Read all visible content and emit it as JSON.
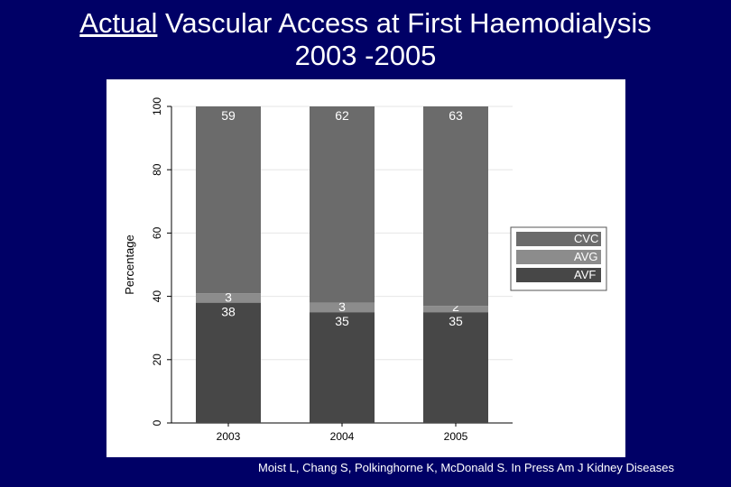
{
  "title": {
    "underlined": "Actual",
    "line1_rest": " Vascular Access at First Haemodialysis",
    "line2": "2003 -2005"
  },
  "citation": "Moist L, Chang S, Polkinghorne K, McDonald S. In Press Am J Kidney Diseases",
  "colors": {
    "background": "#000066",
    "CVC": "#6b6b6b",
    "AVG": "#8c8c8c",
    "AVF": "#474747"
  },
  "chart_data": {
    "type": "bar",
    "stacked": true,
    "categories": [
      "2003",
      "2004",
      "2005"
    ],
    "series": [
      {
        "name": "AVF",
        "values": [
          38,
          35,
          35
        ]
      },
      {
        "name": "AVG",
        "values": [
          3,
          3,
          2
        ]
      },
      {
        "name": "CVC",
        "values": [
          59,
          62,
          63
        ]
      }
    ],
    "legend_order": [
      "CVC",
      "AVG",
      "AVF"
    ],
    "ylabel": "Percentage",
    "xlabel": "",
    "ylim": [
      0,
      100
    ],
    "yticks": [
      0,
      20,
      40,
      60,
      80,
      100
    ],
    "grid": true,
    "legend_position": "right"
  }
}
